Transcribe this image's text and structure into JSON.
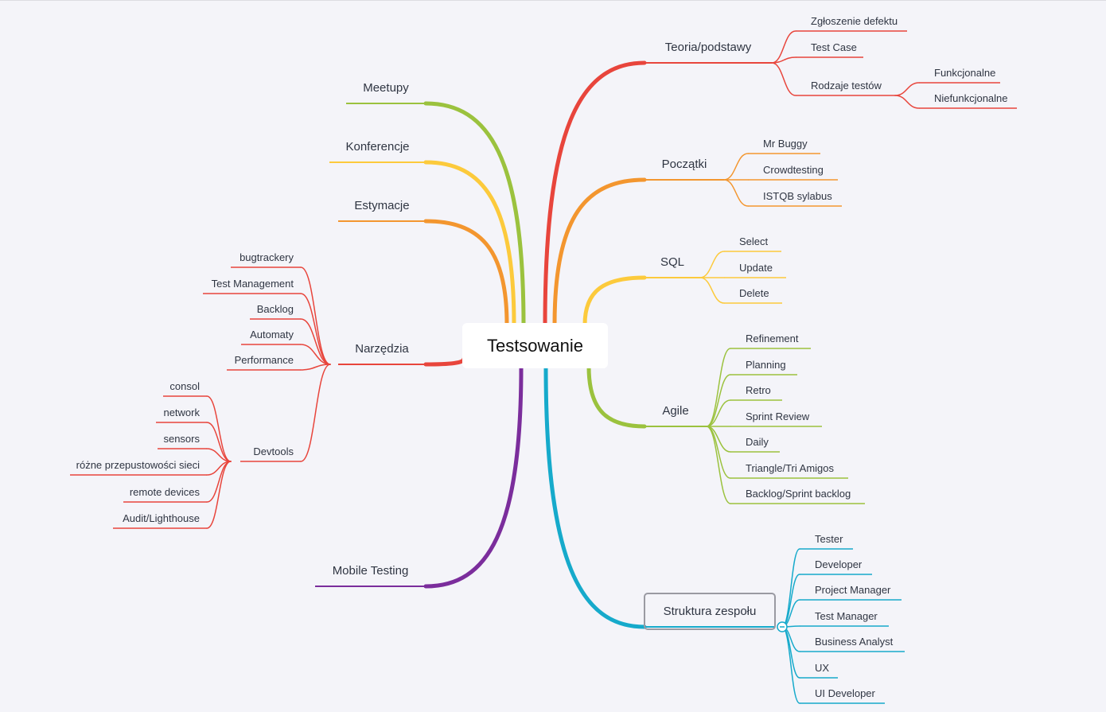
{
  "root": {
    "label": "Testsowanie"
  },
  "colors": {
    "red": "#e8453c",
    "orange": "#f3962f",
    "yellow": "#fcca3c",
    "green": "#9bc23e",
    "cyan": "#16aacb",
    "purple": "#7b2d9c",
    "background": "#f4f4f9"
  },
  "branches": [
    {
      "label": "Teoria/podstawy",
      "color": "red",
      "side": "right",
      "children": [
        {
          "label": "Zgłoszenie defektu"
        },
        {
          "label": "Test Case"
        },
        {
          "label": "Rodzaje testów",
          "children": [
            {
              "label": "Funkcjonalne"
            },
            {
              "label": "Niefunkcjonalne"
            }
          ]
        }
      ]
    },
    {
      "label": "Początki",
      "color": "orange",
      "side": "right",
      "children": [
        {
          "label": "Mr Buggy"
        },
        {
          "label": "Crowdtesting"
        },
        {
          "label": "ISTQB sylabus"
        }
      ]
    },
    {
      "label": "SQL",
      "color": "yellow",
      "side": "right",
      "children": [
        {
          "label": "Select"
        },
        {
          "label": "Update"
        },
        {
          "label": "Delete"
        }
      ]
    },
    {
      "label": "Agile",
      "color": "green",
      "side": "right",
      "children": [
        {
          "label": "Refinement"
        },
        {
          "label": "Planning"
        },
        {
          "label": "Retro"
        },
        {
          "label": "Sprint Review"
        },
        {
          "label": "Daily"
        },
        {
          "label": "Triangle/Tri Amigos"
        },
        {
          "label": "Backlog/Sprint backlog"
        }
      ]
    },
    {
      "label": "Struktura zespołu",
      "color": "cyan",
      "side": "right",
      "selected": true,
      "collapse_icon": "minus-circle-icon",
      "children": [
        {
          "label": "Tester"
        },
        {
          "label": "Developer"
        },
        {
          "label": "Project Manager"
        },
        {
          "label": "Test Manager"
        },
        {
          "label": "Business Analyst"
        },
        {
          "label": "UX"
        },
        {
          "label": "UI Developer"
        }
      ]
    },
    {
      "label": "Meetupy",
      "color": "green",
      "side": "left",
      "children": []
    },
    {
      "label": "Konferencje",
      "color": "yellow",
      "side": "left",
      "children": []
    },
    {
      "label": "Estymacje",
      "color": "orange",
      "side": "left",
      "children": []
    },
    {
      "label": "Narzędzia",
      "color": "red",
      "side": "left",
      "children": [
        {
          "label": "bugtrackery"
        },
        {
          "label": "Test Management"
        },
        {
          "label": "Backlog"
        },
        {
          "label": "Automaty"
        },
        {
          "label": "Performance"
        },
        {
          "label": "Devtools",
          "children": [
            {
              "label": "consol"
            },
            {
              "label": "network"
            },
            {
              "label": "sensors"
            },
            {
              "label": "różne przepustowości sieci"
            },
            {
              "label": "remote devices"
            },
            {
              "label": "Audit/Lighthouse"
            }
          ]
        }
      ]
    },
    {
      "label": "Mobile Testing",
      "color": "purple",
      "side": "left",
      "children": []
    }
  ]
}
